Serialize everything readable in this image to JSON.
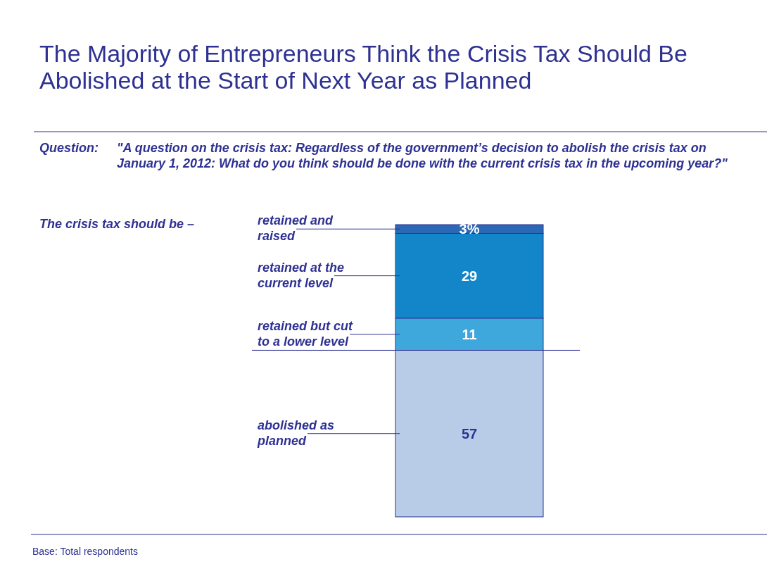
{
  "chart_data": {
    "type": "bar",
    "stacked": true,
    "title": "The Majority of Entrepreneurs Think the Crisis Tax Should Be Abolished at the Start of Next Year as Planned",
    "subtitle": "Question: \"A question on the crisis tax: Regardless of the government’s decision to abolish the crisis tax on January 1, 2012: What do you think should be done with the current crisis tax in the upcoming year?\"",
    "categories": [
      null
    ],
    "series": [
      {
        "name": "abolished as planned",
        "color": "#b8cce8",
        "values": [
          57
        ],
        "value_labels": [
          "57"
        ]
      },
      {
        "name": "retained but cut to a lower level",
        "color": "#3ea8dc",
        "values": [
          11
        ],
        "value_labels": [
          "11"
        ]
      },
      {
        "name": "retained at the current level",
        "color": "#1286c8",
        "values": [
          29
        ],
        "value_labels": [
          "29"
        ]
      },
      {
        "name": "retained and raised",
        "color": "#2a6ab4",
        "values": [
          3
        ],
        "value_labels": [
          "3%"
        ]
      }
    ],
    "ref_lines": [
      {
        "axis": "y",
        "value": 57,
        "color": "#2e3192"
      }
    ],
    "annotations": [
      "The crisis tax should be –",
      "Base: Total respondents"
    ]
  }
}
